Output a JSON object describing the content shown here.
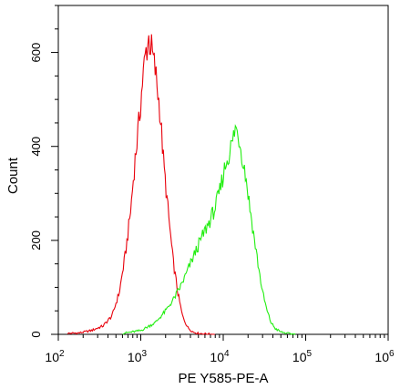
{
  "chart_data": {
    "type": "line",
    "title": "",
    "xlabel": "PE Y585-PE-A",
    "ylabel": "Count",
    "x_scale": "log",
    "xlim": [
      100,
      1000000
    ],
    "ylim": [
      0,
      700
    ],
    "grid": false,
    "x_ticks": [
      {
        "base": "10",
        "exp": "2",
        "value": 100
      },
      {
        "base": "10",
        "exp": "3",
        "value": 1000
      },
      {
        "base": "10",
        "exp": "4",
        "value": 10000
      },
      {
        "base": "10",
        "exp": "5",
        "value": 100000
      },
      {
        "base": "10",
        "exp": "6",
        "value": 1000000
      }
    ],
    "y_ticks": [
      {
        "label": "0",
        "value": 0
      },
      {
        "label": "200",
        "value": 200
      },
      {
        "label": "400",
        "value": 400
      },
      {
        "label": "600",
        "value": 600
      }
    ],
    "series": [
      {
        "color": "#e8000b",
        "x": [
          130,
          180,
          250,
          350,
          450,
          550,
          650,
          750,
          850,
          950,
          1050,
          1150,
          1250,
          1350,
          1500,
          1700,
          1900,
          2150,
          2450,
          2800,
          3200,
          3700,
          4300,
          5000,
          6000,
          8000
        ],
        "y": [
          2,
          3,
          8,
          18,
          40,
          90,
          170,
          260,
          370,
          450,
          540,
          600,
          630,
          605,
          560,
          480,
          360,
          260,
          160,
          90,
          40,
          15,
          5,
          2,
          1,
          0
        ]
      },
      {
        "color": "#22ee11",
        "x": [
          600,
          1000,
          1500,
          2000,
          2500,
          3000,
          3500,
          4000,
          5000,
          6000,
          7000,
          8000,
          9000,
          10000,
          11000,
          12000,
          13000,
          14000,
          15500,
          17000,
          19000,
          21000,
          24000,
          27000,
          30000,
          34000,
          38000,
          43000,
          50000,
          60000,
          75000
        ],
        "y": [
          2,
          8,
          25,
          50,
          75,
          100,
          125,
          150,
          190,
          220,
          245,
          270,
          300,
          340,
          370,
          390,
          410,
          440,
          420,
          380,
          330,
          270,
          200,
          140,
          90,
          50,
          25,
          12,
          5,
          2,
          0
        ]
      }
    ]
  }
}
